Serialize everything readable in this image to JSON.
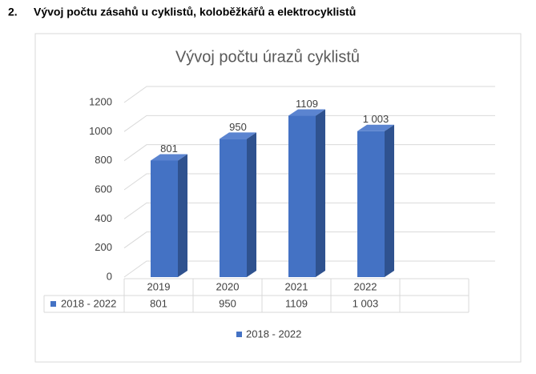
{
  "heading": {
    "number": "2.",
    "text": "Vývoj počtu zásahů u cyklistů, koloběžkářů a elektrocyklistů"
  },
  "chart_data": {
    "type": "bar",
    "title": "Vývoj počtu úrazů cyklistů",
    "categories": [
      "2019",
      "2020",
      "2021",
      "2022",
      null
    ],
    "series": [
      {
        "name": "2018 - 2022",
        "color": "#4472c4",
        "values": [
          801,
          950,
          1109,
          1003,
          null
        ],
        "value_labels": [
          "801",
          "950",
          "1109",
          "1 003",
          null
        ]
      }
    ],
    "ylim": [
      0,
      1200
    ],
    "yticks": [
      0,
      200,
      400,
      600,
      800,
      1000,
      1200
    ],
    "grid": true,
    "legend": "bottom",
    "data_table": true
  }
}
